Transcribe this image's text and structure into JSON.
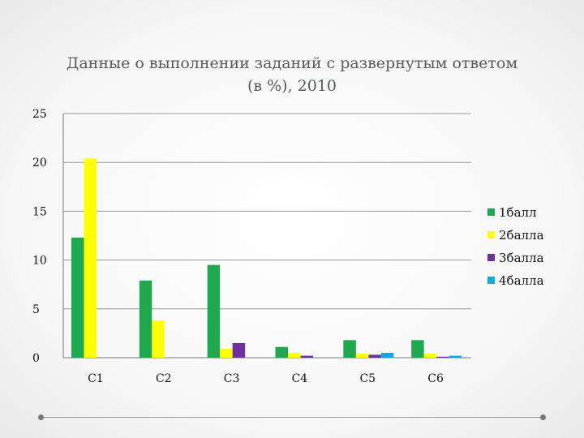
{
  "chart_data": {
    "type": "bar",
    "title_lines": [
      "Данные о выполнении заданий с развернутым ответом",
      "(в %), 2010"
    ],
    "categories": [
      "С1",
      "С2",
      "С3",
      "С4",
      "С5",
      "С6"
    ],
    "series": [
      {
        "name": "1балл",
        "color": "#1fa84f",
        "values": [
          12.3,
          7.9,
          9.5,
          1.1,
          1.8,
          1.8
        ]
      },
      {
        "name": "2балла",
        "color": "#ffff00",
        "values": [
          20.4,
          3.8,
          0.9,
          0.5,
          0.4,
          0.4
        ]
      },
      {
        "name": "3балла",
        "color": "#7030a0",
        "values": [
          0,
          0,
          1.5,
          0.2,
          0.3,
          0.1
        ]
      },
      {
        "name": "4балла",
        "color": "#14a8e0",
        "values": [
          0,
          0,
          0,
          0,
          0.5,
          0.2
        ]
      }
    ],
    "yticks": [
      "0",
      "5",
      "10",
      "15",
      "20",
      "25"
    ],
    "ylim": [
      0,
      25
    ],
    "grid": true,
    "legend_position": "right"
  },
  "colors": {
    "gridline": "#999999",
    "axis": "#777777",
    "frame": "#9a9a9a"
  }
}
